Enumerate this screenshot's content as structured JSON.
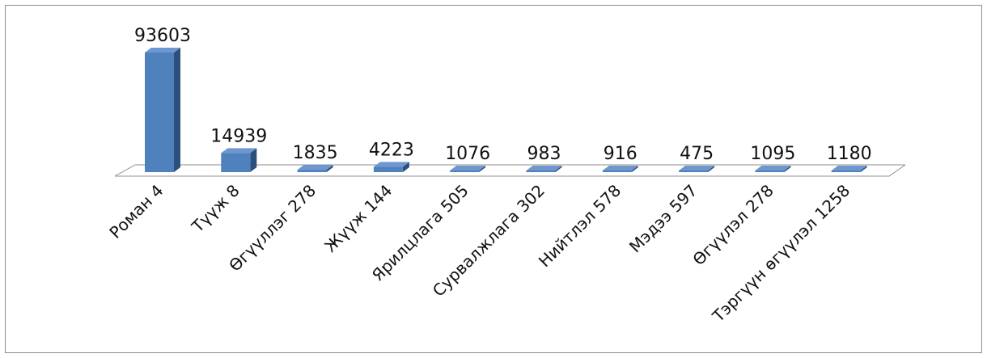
{
  "chart_data": {
    "type": "bar",
    "categories": [
      "Роман 4",
      "Түүж 8",
      "Өгүүллэг 278",
      "Жүүж 144",
      "Ярилцлага 505",
      "Сурвалжлага 302",
      "Нийтлэл 578",
      "Мэдээ 597",
      "Өгүүлэл 278",
      "Тэргүүн өгүүлэл 1258"
    ],
    "values": [
      93603,
      14939,
      1835,
      4223,
      1076,
      983,
      916,
      475,
      1095,
      1180
    ],
    "data_labels": [
      "93603",
      "14939",
      "1835",
      "4223",
      "1076",
      "983",
      "916",
      "475",
      "1095",
      "1180"
    ],
    "ylim": [
      0,
      93603
    ],
    "grid": false,
    "legend": "none",
    "bar_color": "#4f81bd",
    "bar_side_color": "#2c4f7c",
    "bar_top_color": "#6f97cf",
    "floor_color": "#8c8c8c"
  }
}
